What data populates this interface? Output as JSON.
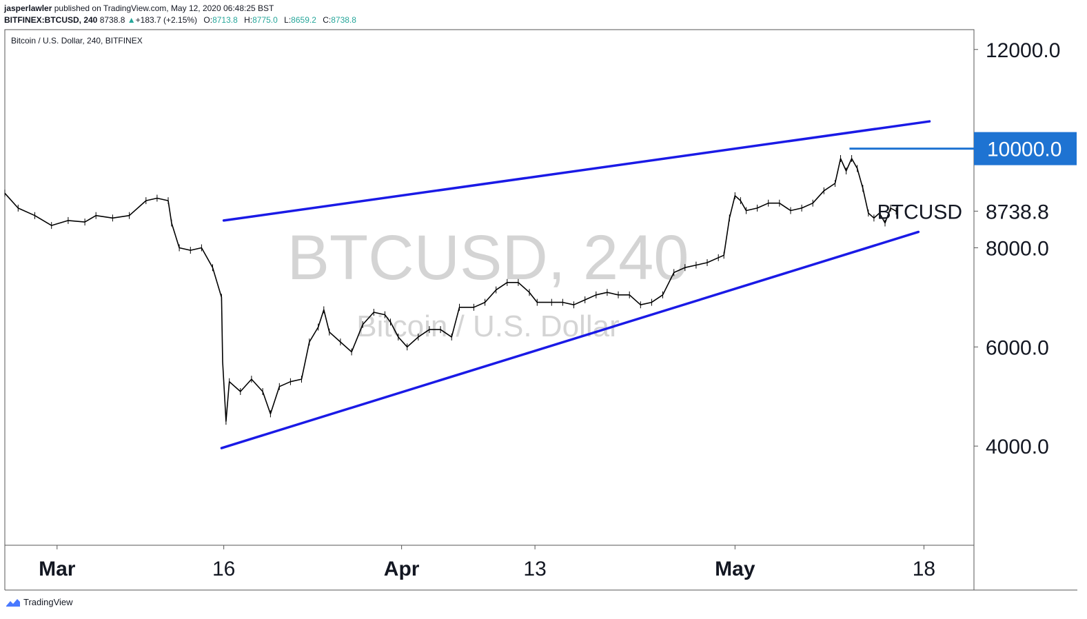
{
  "header": {
    "author": "jasperlawler",
    "published_text": "published on TradingView.com, May 12, 2020 06:48:25 BST",
    "symbol": "BITFINEX:BTCUSD, 240",
    "last": "8738.8",
    "change_arrow": "▲",
    "change": "+183.7 (+2.15%)",
    "open_label": "O:",
    "open": "8713.8",
    "high_label": "H:",
    "high": "8775.0",
    "low_label": "L:",
    "low": "8659.2",
    "close_label": "C:",
    "close": "8738.8"
  },
  "chart_title": "Bitcoin / U.S. Dollar, 240, BITFINEX",
  "watermark": {
    "symbol": "BTCUSD, 240",
    "description": "Bitcoin / U.S. Dollar"
  },
  "footer": {
    "brand": "TradingView",
    "icon": "tradingview-logo-icon"
  },
  "colors": {
    "channel": "#1a1ae6",
    "level": "#1e73d2",
    "candle": "#000000",
    "axis": "#555555",
    "watermark": "#d4d4d4"
  },
  "chart_data": {
    "type": "line",
    "title": "Bitcoin / U.S. Dollar, 240, BITFINEX",
    "xlabel": "",
    "ylabel": "",
    "ylim": [
      2000,
      12400
    ],
    "yticks": [
      "12000.0",
      "10000.0",
      "8000.0",
      "6000.0",
      "4000.0"
    ],
    "ytick_values": [
      12000,
      10000,
      8000,
      6000,
      4000
    ],
    "xticks": [
      {
        "label": "Mar",
        "day": 1,
        "bold": true
      },
      {
        "label": "16",
        "day": 16,
        "bold": false
      },
      {
        "label": "Apr",
        "day": 32,
        "bold": true
      },
      {
        "label": "13",
        "day": 44,
        "bold": false
      },
      {
        "label": "May",
        "day": 62,
        "bold": true
      },
      {
        "label": "18",
        "day": 79,
        "bold": false
      }
    ],
    "xlim": [
      -3.7,
      83.5
    ],
    "series": [
      {
        "values": [
          [
            -3.7,
            9100
          ],
          [
            -2.5,
            8800
          ],
          [
            -1,
            8650
          ],
          [
            0.5,
            8450
          ],
          [
            2,
            8550
          ],
          [
            3.5,
            8520
          ],
          [
            4.5,
            8650
          ],
          [
            6,
            8600
          ],
          [
            7.5,
            8650
          ],
          [
            9,
            8950
          ],
          [
            10,
            9000
          ],
          [
            11,
            8950
          ],
          [
            11.3,
            8500
          ],
          [
            12,
            8000
          ],
          [
            13,
            7950
          ],
          [
            14,
            8000
          ],
          [
            15,
            7600
          ],
          [
            15.8,
            7000
          ],
          [
            15.9,
            5700
          ],
          [
            16.2,
            4500
          ],
          [
            16.5,
            5300
          ],
          [
            17.5,
            5100
          ],
          [
            18.5,
            5350
          ],
          [
            19.5,
            5100
          ],
          [
            20.2,
            4650
          ],
          [
            21,
            5200
          ],
          [
            22,
            5300
          ],
          [
            23,
            5350
          ],
          [
            23.7,
            6100
          ],
          [
            24.5,
            6400
          ],
          [
            25,
            6750
          ],
          [
            25.5,
            6300
          ],
          [
            26.5,
            6100
          ],
          [
            27.5,
            5900
          ],
          [
            28.5,
            6450
          ],
          [
            29.5,
            6700
          ],
          [
            30.5,
            6650
          ],
          [
            31,
            6500
          ],
          [
            31.7,
            6200
          ],
          [
            32.5,
            6000
          ],
          [
            33.5,
            6200
          ],
          [
            34.5,
            6350
          ],
          [
            35.5,
            6350
          ],
          [
            36.5,
            6200
          ],
          [
            37.2,
            6800
          ],
          [
            38.5,
            6800
          ],
          [
            39.5,
            6900
          ],
          [
            40.5,
            7150
          ],
          [
            41.5,
            7300
          ],
          [
            42.5,
            7300
          ],
          [
            43.5,
            7100
          ],
          [
            44.2,
            6900
          ],
          [
            45.5,
            6900
          ],
          [
            46.5,
            6900
          ],
          [
            47.5,
            6850
          ],
          [
            48.5,
            6950
          ],
          [
            49.5,
            7050
          ],
          [
            50.5,
            7100
          ],
          [
            51.5,
            7050
          ],
          [
            52.5,
            7050
          ],
          [
            53.5,
            6850
          ],
          [
            54.5,
            6900
          ],
          [
            55.5,
            7050
          ],
          [
            56.5,
            7500
          ],
          [
            57.5,
            7600
          ],
          [
            58.5,
            7650
          ],
          [
            59.5,
            7700
          ],
          [
            60.5,
            7800
          ],
          [
            61,
            7850
          ],
          [
            61.5,
            8600
          ],
          [
            62,
            9050
          ],
          [
            62.5,
            8950
          ],
          [
            63,
            8750
          ],
          [
            64,
            8800
          ],
          [
            65,
            8900
          ],
          [
            66,
            8900
          ],
          [
            67,
            8750
          ],
          [
            68,
            8800
          ],
          [
            69,
            8900
          ],
          [
            70,
            9150
          ],
          [
            71,
            9300
          ],
          [
            71.5,
            9800
          ],
          [
            72,
            9550
          ],
          [
            72.5,
            9800
          ],
          [
            73,
            9600
          ],
          [
            73.5,
            9200
          ],
          [
            74,
            8700
          ],
          [
            74.5,
            8600
          ],
          [
            75,
            8700
          ],
          [
            75.5,
            8500
          ],
          [
            76,
            8800
          ],
          [
            76.5,
            8738.8
          ]
        ]
      }
    ],
    "channel": {
      "upper": [
        [
          16.0,
          8550
        ],
        [
          79.5,
          10550
        ]
      ],
      "lower": [
        [
          15.8,
          3960
        ],
        [
          78.5,
          8320
        ]
      ]
    },
    "annotations": [
      {
        "text": "10000.0",
        "value": 10000,
        "kind": "horizontal-level"
      },
      {
        "text": "BTCUSD",
        "value": 8738.8,
        "kind": "last-price-label"
      },
      {
        "text": "8738.8",
        "value": 8738.8,
        "kind": "last-price"
      }
    ]
  }
}
